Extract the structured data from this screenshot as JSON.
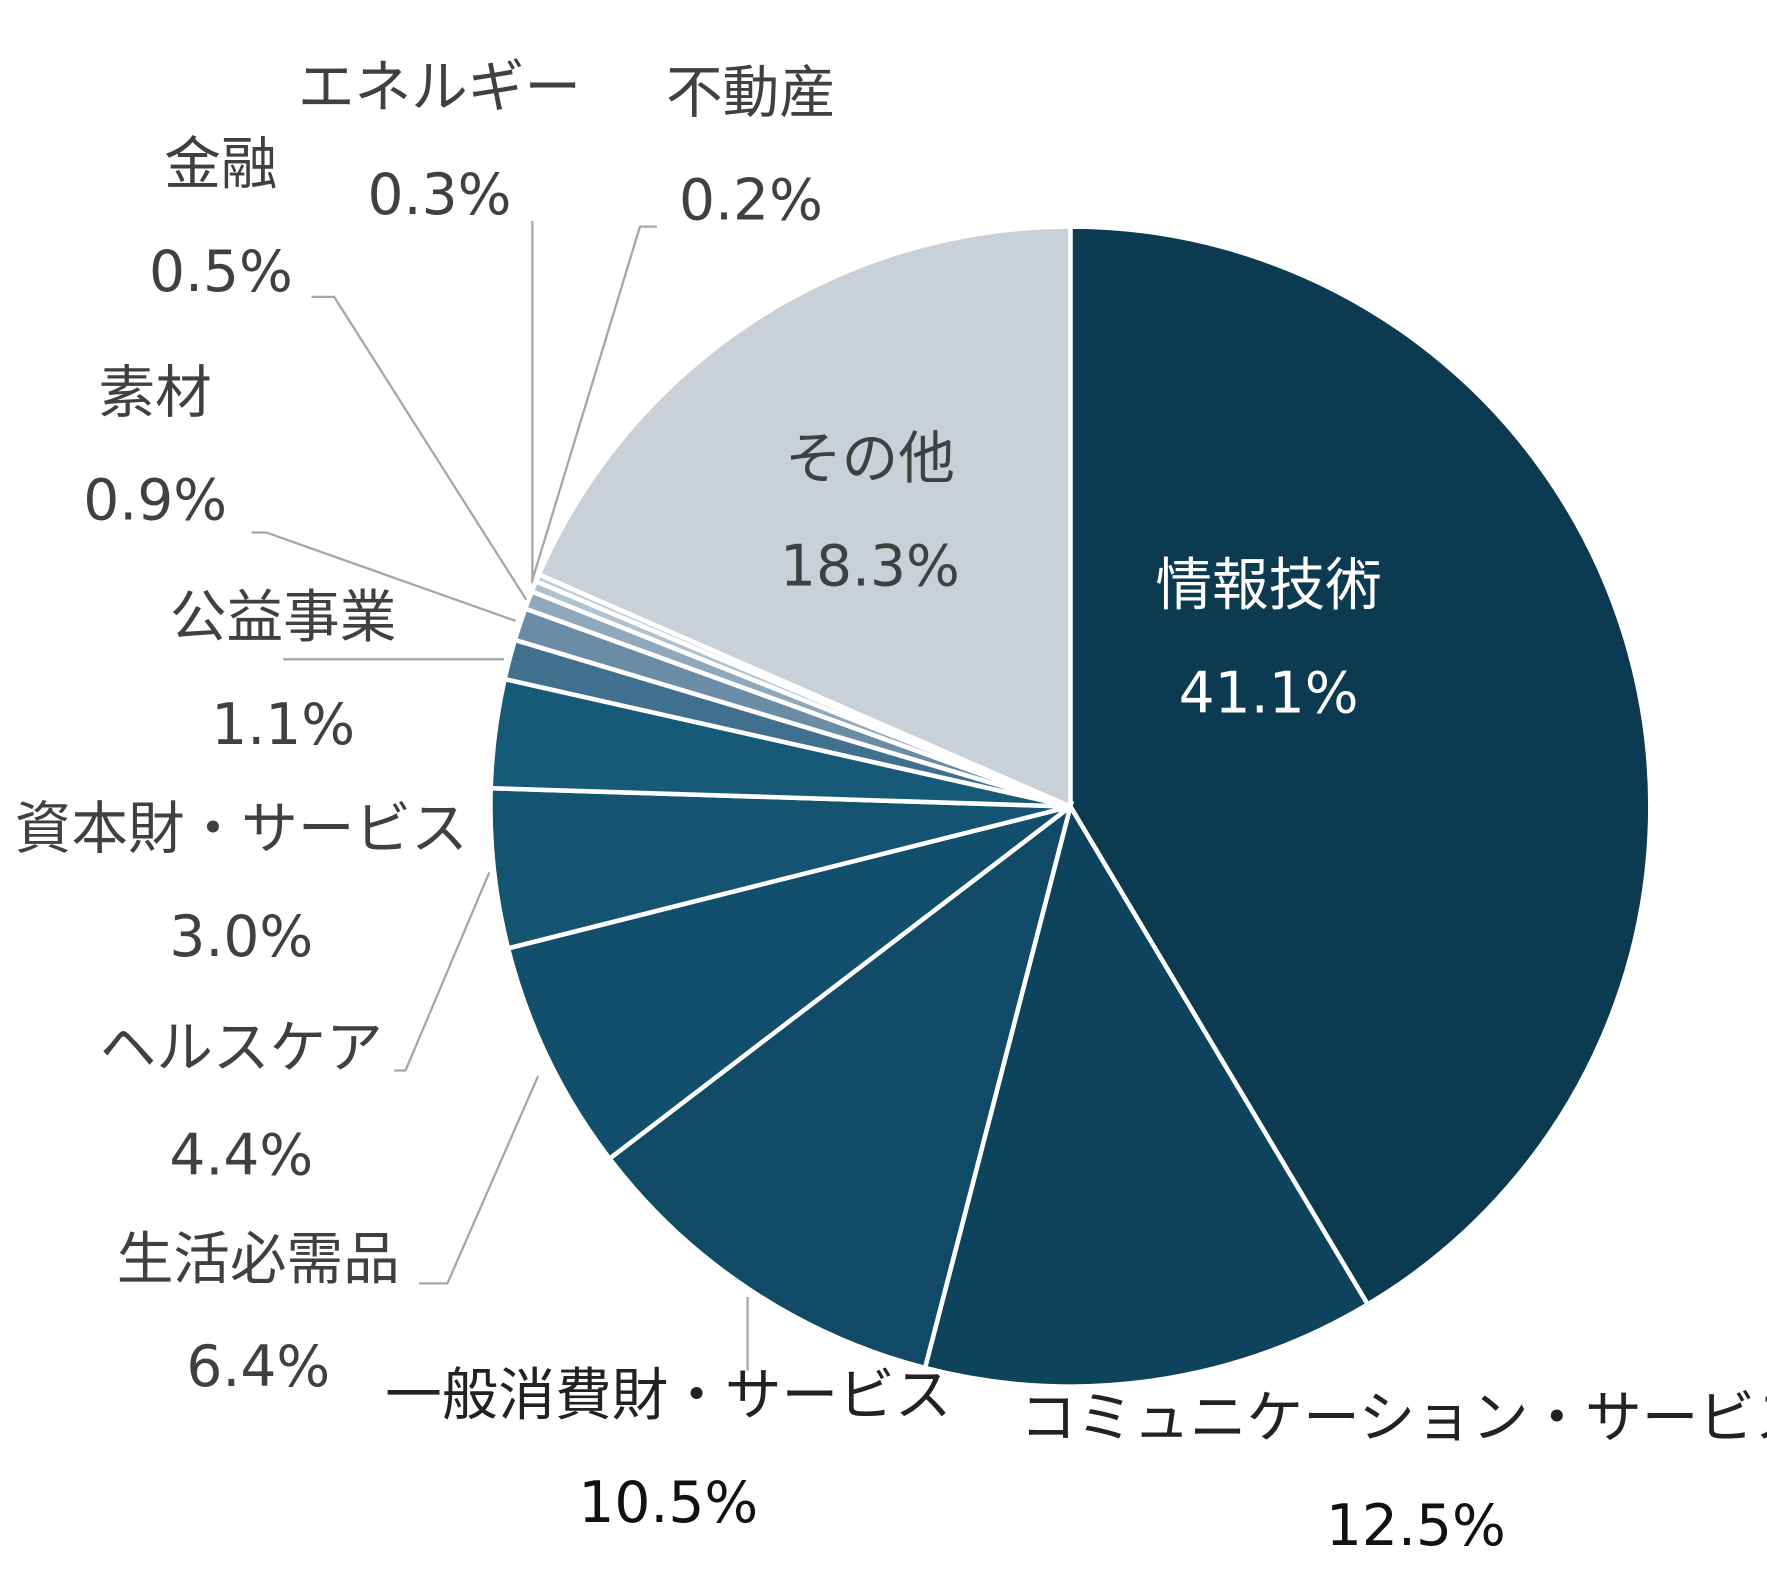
{
  "chart_data": {
    "type": "pie",
    "categories": [
      "情報技術",
      "コミュニケーション・サービス",
      "一般消費財・サービス",
      "生活必需品",
      "ヘルスケア",
      "資本財・サービス",
      "公益事業",
      "素材",
      "金融",
      "エネルギー",
      "不動産",
      "その他"
    ],
    "values": [
      41.1,
      12.5,
      10.5,
      6.4,
      4.4,
      3.0,
      1.1,
      0.9,
      0.5,
      0.3,
      0.2,
      18.3
    ],
    "value_labels": [
      "41.1%",
      "12.5%",
      "10.5%",
      "6.4%",
      "4.4%",
      "3.0%",
      "1.1%",
      "0.9%",
      "0.5%",
      "0.3%",
      "0.2%",
      "18.3%"
    ],
    "colors": [
      "#0c3a51",
      "#0e435d",
      "#114a66",
      "#124f6c",
      "#145471",
      "#165a78",
      "#41708e",
      "#6a8ca4",
      "#8fa8bc",
      "#b0c2d0",
      "#c0ccd6",
      "#c9d0d7"
    ]
  }
}
